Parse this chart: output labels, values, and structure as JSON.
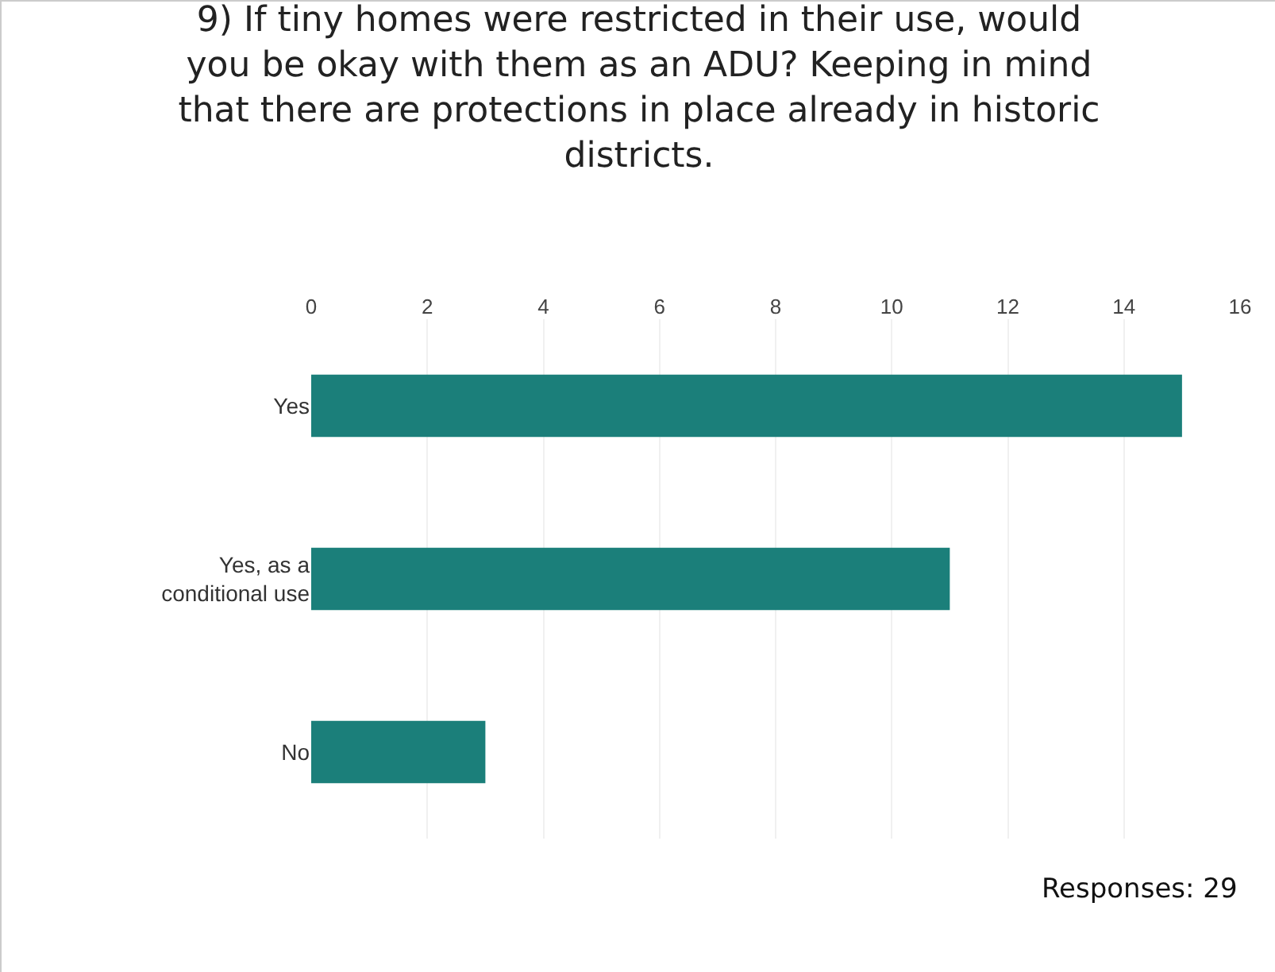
{
  "chart_data": {
    "type": "bar",
    "orientation": "horizontal",
    "title": "9) If tiny homes were restricted in their use, would you be okay with them as an ADU? Keeping in mind that there are protections in place already in historic districts.",
    "categories": [
      "Yes",
      "Yes, as a conditional use",
      "No"
    ],
    "values": [
      15,
      11,
      3
    ],
    "color": "#1b7f7a",
    "xlim": [
      0,
      16
    ],
    "xticks": [
      0,
      2,
      4,
      6,
      8,
      10,
      12,
      14,
      16
    ],
    "grid": "x",
    "legend": false,
    "annotations": [
      "Responses: 29"
    ]
  }
}
